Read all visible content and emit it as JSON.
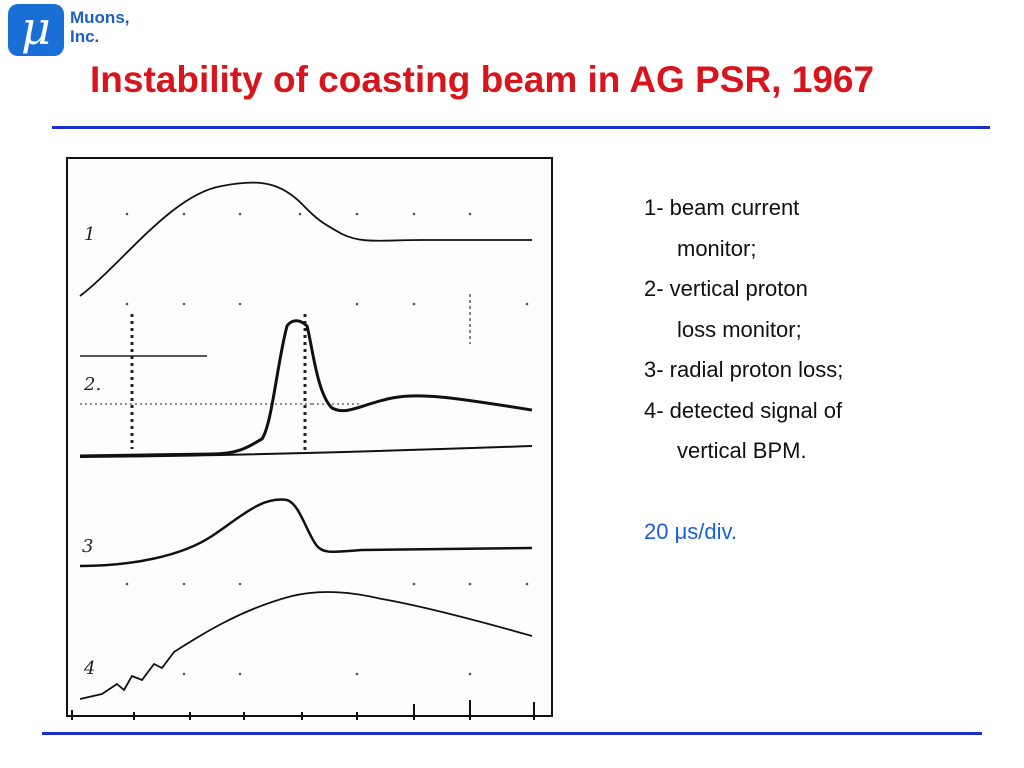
{
  "logo": {
    "symbol": "μ",
    "line1": "Muons,",
    "line2": "Inc."
  },
  "title": "Instability of coasting beam in AG PSR, 1967",
  "figure": {
    "trace_labels": [
      "1",
      "2.",
      "3",
      "4"
    ]
  },
  "legend": {
    "items": [
      "1- beam current",
      "monitor;",
      "2- vertical proton",
      "loss monitor;",
      "3- radial proton loss;",
      "4- detected signal of",
      "vertical BPM."
    ],
    "scale": "20 μs/div."
  },
  "colors": {
    "title": "#d8141c",
    "rule": "#1c2fd0",
    "logo": "#1a6fd6",
    "scale_text": "#1b5fe0"
  }
}
